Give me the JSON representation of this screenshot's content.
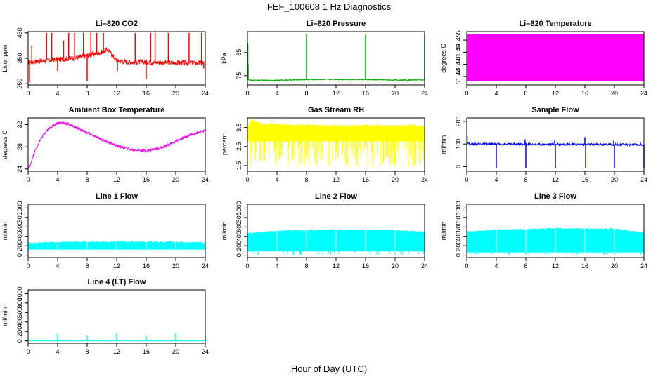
{
  "figure": {
    "title": "FEF_100608  1 Hz Diagnostics",
    "xlabel": "Hour of Day (UTC)"
  },
  "chart_data": [
    {
      "type": "line",
      "title": "Li–820 CO2",
      "ylabel": "Licor ppm",
      "color": "#ff0000",
      "xlim": [
        0,
        24
      ],
      "xticks": [
        0,
        4,
        8,
        12,
        16,
        20,
        24
      ],
      "ylim": [
        245,
        455
      ],
      "yticks": [
        250,
        350,
        450
      ],
      "baseline": [
        [
          0,
          335
        ],
        [
          2,
          340
        ],
        [
          4,
          345
        ],
        [
          6,
          350
        ],
        [
          8,
          360
        ],
        [
          10,
          375
        ],
        [
          10.8,
          385
        ],
        [
          11.5,
          360
        ],
        [
          12,
          340
        ],
        [
          14,
          335
        ],
        [
          16,
          335
        ],
        [
          18,
          333
        ],
        [
          20,
          332
        ],
        [
          22,
          332
        ],
        [
          24,
          330
        ]
      ],
      "noise": 10,
      "spikes": [
        [
          0.2,
          255
        ],
        [
          0.5,
          400
        ],
        [
          2.5,
          450
        ],
        [
          3.2,
          450
        ],
        [
          4.0,
          300
        ],
        [
          4.8,
          420
        ],
        [
          5.5,
          450
        ],
        [
          6.3,
          450
        ],
        [
          7.5,
          450
        ],
        [
          8.0,
          260
        ],
        [
          8.5,
          450
        ],
        [
          9.3,
          450
        ],
        [
          10.2,
          450
        ],
        [
          12.1,
          300
        ],
        [
          14.5,
          450
        ],
        [
          16.0,
          270
        ],
        [
          16.6,
          450
        ],
        [
          17.2,
          450
        ],
        [
          19.0,
          450
        ],
        [
          21.8,
          450
        ],
        [
          23.5,
          450
        ],
        [
          23.8,
          310
        ]
      ]
    },
    {
      "type": "line",
      "title": "Li–820 Pressure",
      "ylabel": "kPa",
      "color": "#00aa00",
      "xlim": [
        0,
        24
      ],
      "xticks": [
        0,
        4,
        8,
        12,
        16,
        20,
        24
      ],
      "ylim": [
        71,
        94
      ],
      "yticks": [
        75,
        85
      ],
      "baseline": [
        [
          0,
          73.5
        ],
        [
          0.3,
          73.0
        ],
        [
          4,
          73.0
        ],
        [
          8,
          73.3
        ],
        [
          12,
          73.4
        ],
        [
          16,
          73.3
        ],
        [
          20,
          73.1
        ],
        [
          24,
          73.2
        ]
      ],
      "noise": 0.2,
      "spikes": [
        [
          0.05,
          89
        ],
        [
          0.1,
          80
        ],
        [
          8.0,
          93
        ],
        [
          16.0,
          93
        ],
        [
          24.0,
          93
        ]
      ]
    },
    {
      "type": "area",
      "title": "Li–820 Temperature",
      "ylabel": "degrees C",
      "color": "#ff00ff",
      "xlim": [
        0,
        24
      ],
      "xticks": [
        0,
        4,
        8,
        12,
        16,
        20,
        24
      ],
      "ylim": [
        51.4365,
        51.4585
      ],
      "yticks": [
        51.44,
        51.445,
        51.45,
        51.455
      ],
      "fill_range": [
        51.438,
        51.4575
      ]
    },
    {
      "type": "line",
      "title": "Ambient Box Temperature",
      "ylabel": "degrees C",
      "color": "#ee00ee",
      "xlim": [
        0,
        24
      ],
      "xticks": [
        0,
        4,
        8,
        12,
        16,
        20,
        24
      ],
      "ylim": [
        23.6,
        33.2
      ],
      "yticks": [
        24,
        28,
        32
      ],
      "baseline": [
        [
          0,
          24.0
        ],
        [
          0.5,
          25.5
        ],
        [
          1,
          27.5
        ],
        [
          2,
          30.0
        ],
        [
          3,
          31.5
        ],
        [
          4,
          32.3
        ],
        [
          5,
          32.3
        ],
        [
          6,
          31.8
        ],
        [
          8,
          30.5
        ],
        [
          10,
          29.3
        ],
        [
          12,
          28.2
        ],
        [
          14,
          27.5
        ],
        [
          16,
          27.3
        ],
        [
          18,
          27.8
        ],
        [
          20,
          28.9
        ],
        [
          22,
          30.2
        ],
        [
          24,
          30.9
        ]
      ],
      "noise": 0.25,
      "spikes": []
    },
    {
      "type": "area",
      "title": "Gas Stream RH",
      "ylabel": "percent",
      "color": "#ffff00",
      "xlim": [
        0,
        24
      ],
      "xticks": [
        0,
        4,
        8,
        12,
        16,
        20,
        24
      ],
      "ylim": [
        1.2,
        4.0
      ],
      "yticks": [
        1.5,
        2.5,
        3.5
      ],
      "upper": [
        [
          0,
          3.5
        ],
        [
          0.6,
          3.9
        ],
        [
          2,
          3.7
        ],
        [
          6,
          3.65
        ],
        [
          12,
          3.6
        ],
        [
          18,
          3.6
        ],
        [
          24,
          3.6
        ]
      ],
      "low": 1.4,
      "dips": 130
    },
    {
      "type": "line",
      "title": "Sample Flow",
      "ylabel": "ml/min",
      "color": "#0000ff",
      "xlim": [
        0,
        24
      ],
      "xticks": [
        0,
        4,
        8,
        12,
        16,
        20,
        24
      ],
      "ylim": [
        -20,
        215
      ],
      "yticks": [
        0,
        100,
        200
      ],
      "baseline": [
        [
          0,
          110
        ],
        [
          0.3,
          100
        ],
        [
          24,
          97
        ]
      ],
      "noise": 5,
      "spikes": [
        [
          0.05,
          135
        ],
        [
          4.0,
          -5
        ],
        [
          7.9,
          120
        ],
        [
          8.0,
          -5
        ],
        [
          11.9,
          115
        ],
        [
          12.0,
          -5
        ],
        [
          16.0,
          130
        ],
        [
          16.1,
          -5
        ],
        [
          19.9,
          115
        ],
        [
          20.0,
          -5
        ],
        [
          24.0,
          -5
        ]
      ]
    },
    {
      "type": "area",
      "title": "Line 1 Flow",
      "ylabel": "ml/min",
      "color": "#00ffff",
      "xlim": [
        0,
        24
      ],
      "xticks": [
        0,
        4,
        8,
        12,
        16,
        20,
        24
      ],
      "ylim": [
        -50,
        1080
      ],
      "yticks": [
        0,
        200,
        400,
        600,
        800,
        1000
      ],
      "band": [
        [
          0,
          120,
          260
        ],
        [
          4,
          120,
          280
        ],
        [
          12,
          120,
          290
        ],
        [
          20,
          120,
          280
        ],
        [
          24,
          120,
          270
        ]
      ],
      "gaps": [
        4,
        8,
        12,
        16,
        20
      ]
    },
    {
      "type": "area",
      "title": "Line 2 Flow",
      "ylabel": "ml/min",
      "color": "#00ffff",
      "xlim": [
        0,
        24
      ],
      "xticks": [
        0,
        4,
        8,
        12,
        16,
        20,
        24
      ],
      "ylim": [
        -50,
        1080
      ],
      "yticks": [
        0,
        200,
        400,
        600,
        800,
        1000
      ],
      "band": [
        [
          0,
          80,
          470
        ],
        [
          4,
          80,
          520
        ],
        [
          12,
          80,
          540
        ],
        [
          20,
          80,
          530
        ],
        [
          24,
          80,
          500
        ]
      ],
      "gaps": [
        4,
        8,
        12,
        16,
        20
      ],
      "dips": 30
    },
    {
      "type": "area",
      "title": "Line 3 Flow",
      "ylabel": "ml/min",
      "color": "#00ffff",
      "xlim": [
        0,
        24
      ],
      "xticks": [
        0,
        4,
        8,
        12,
        16,
        20,
        24
      ],
      "ylim": [
        -50,
        1080
      ],
      "yticks": [
        0,
        200,
        400,
        600,
        800,
        1000
      ],
      "band": [
        [
          0,
          60,
          500
        ],
        [
          4,
          60,
          540
        ],
        [
          12,
          60,
          570
        ],
        [
          20,
          60,
          560
        ],
        [
          24,
          60,
          480
        ]
      ],
      "gaps": [
        4,
        8,
        12,
        16,
        20
      ],
      "dips": 40
    },
    {
      "type": "line",
      "title": "Line 4 (LT) Flow",
      "ylabel": "ml/min",
      "color": "#00ffff",
      "xlim": [
        0,
        24
      ],
      "xticks": [
        0,
        4,
        8,
        12,
        16,
        20,
        24
      ],
      "ylim": [
        -50,
        1080
      ],
      "yticks": [
        0,
        200,
        400,
        600,
        800,
        1000
      ],
      "baseline": [
        [
          0,
          0
        ],
        [
          24,
          0
        ]
      ],
      "noise": 3,
      "spikes": [
        [
          4.0,
          150
        ],
        [
          8.0,
          110
        ],
        [
          12.0,
          170
        ],
        [
          16.0,
          110
        ],
        [
          20.0,
          160
        ],
        [
          24.0,
          110
        ]
      ]
    }
  ]
}
